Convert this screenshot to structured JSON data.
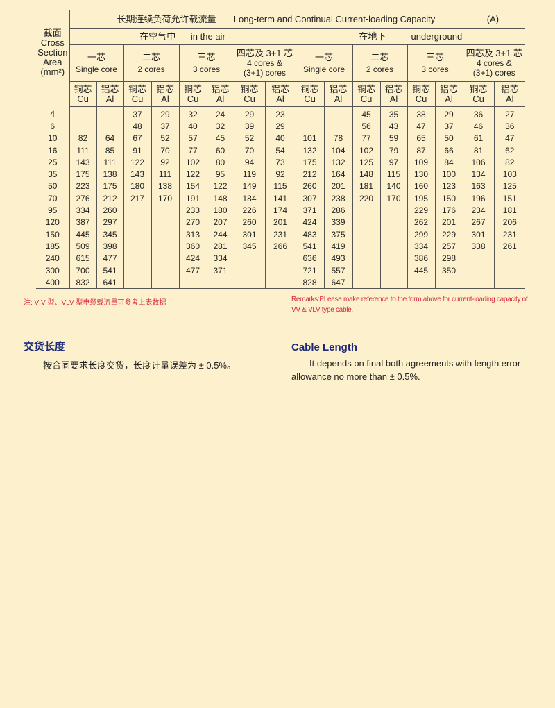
{
  "table": {
    "title_zh": "长期连续负荷允许载流量",
    "title_en": "Long-term and Continual Current-loading Capacity",
    "unit": "(A)",
    "section_header": {
      "zh": "截面",
      "l1": "Cross",
      "l2": "Section",
      "l3": "Area",
      "l4": "(mm²)"
    },
    "groups": [
      {
        "zh": "在空气中",
        "en": "in the air"
      },
      {
        "zh": "在地下",
        "en": "underground"
      }
    ],
    "cores": [
      {
        "zh": "一芯",
        "en": "Single core"
      },
      {
        "zh": "二芯",
        "en": "2 cores"
      },
      {
        "zh": "三芯",
        "en": "3 cores"
      },
      {
        "zh": "四芯及 3+1 芯",
        "en": "4 cores &",
        "en2": "(3+1) cores"
      }
    ],
    "cu_zh": "铜芯",
    "cu_en": "Cu",
    "al_zh": "铝芯",
    "al_en": "Al",
    "rows": [
      [
        "4",
        "",
        "",
        "37",
        "29",
        "32",
        "24",
        "29",
        "23",
        "",
        "",
        "45",
        "35",
        "38",
        "29",
        "36",
        "27"
      ],
      [
        "6",
        "",
        "",
        "48",
        "37",
        "40",
        "32",
        "39",
        "29",
        "",
        "",
        "56",
        "43",
        "47",
        "37",
        "46",
        "36"
      ],
      [
        "10",
        "82",
        "64",
        "67",
        "52",
        "57",
        "45",
        "52",
        "40",
        "101",
        "78",
        "77",
        "59",
        "65",
        "50",
        "61",
        "47"
      ],
      [
        "16",
        "111",
        "85",
        "91",
        "70",
        "77",
        "60",
        "70",
        "54",
        "132",
        "104",
        "102",
        "79",
        "87",
        "66",
        "81",
        "62"
      ],
      [
        "25",
        "143",
        "111",
        "122",
        "92",
        "102",
        "80",
        "94",
        "73",
        "175",
        "132",
        "125",
        "97",
        "109",
        "84",
        "106",
        "82"
      ],
      [
        "35",
        "175",
        "138",
        "143",
        "111",
        "122",
        "95",
        "119",
        "92",
        "212",
        "164",
        "148",
        "115",
        "130",
        "100",
        "134",
        "103"
      ],
      [
        "50",
        "223",
        "175",
        "180",
        "138",
        "154",
        "122",
        "149",
        "115",
        "260",
        "201",
        "181",
        "140",
        "160",
        "123",
        "163",
        "125"
      ],
      [
        "70",
        "276",
        "212",
        "217",
        "170",
        "191",
        "148",
        "184",
        "141",
        "307",
        "238",
        "220",
        "170",
        "195",
        "150",
        "196",
        "151"
      ],
      [
        "95",
        "334",
        "260",
        "",
        "",
        "233",
        "180",
        "226",
        "174",
        "371",
        "286",
        "",
        "",
        "229",
        "176",
        "234",
        "181"
      ],
      [
        "120",
        "387",
        "297",
        "",
        "",
        "270",
        "207",
        "260",
        "201",
        "424",
        "339",
        "",
        "",
        "262",
        "201",
        "267",
        "206"
      ],
      [
        "150",
        "445",
        "345",
        "",
        "",
        "313",
        "244",
        "301",
        "231",
        "483",
        "375",
        "",
        "",
        "299",
        "229",
        "301",
        "231"
      ],
      [
        "185",
        "509",
        "398",
        "",
        "",
        "360",
        "281",
        "345",
        "266",
        "541",
        "419",
        "",
        "",
        "334",
        "257",
        "338",
        "261"
      ],
      [
        "240",
        "615",
        "477",
        "",
        "",
        "424",
        "334",
        "",
        "",
        "636",
        "493",
        "",
        "",
        "386",
        "298",
        "",
        ""
      ],
      [
        "300",
        "700",
        "541",
        "",
        "",
        "477",
        "371",
        "",
        "",
        "721",
        "557",
        "",
        "",
        "445",
        "350",
        "",
        ""
      ],
      [
        "400",
        "832",
        "641",
        "",
        "",
        "",
        "",
        "",
        "",
        "828",
        "647",
        "",
        "",
        "",
        "",
        "",
        ""
      ]
    ]
  },
  "notes": {
    "zh": "注: V V 型、VLV 型电缆载流量可参考上表数据",
    "en": "Remarks:PLease make reference to the form above for current-loading capacity of VV & VLV type cable."
  },
  "cable_length": {
    "title_zh": "交货长度",
    "body_zh": "按合同要求长度交货，长度计量误差为 ± 0.5%。",
    "title_en": "Cable Length",
    "body_en": "It depends on final both agreements with length error allowance no more than ± 0.5%."
  },
  "colors": {
    "background": "#fdf1cd",
    "note": "#d8283a",
    "heading": "#1d2a7a"
  }
}
